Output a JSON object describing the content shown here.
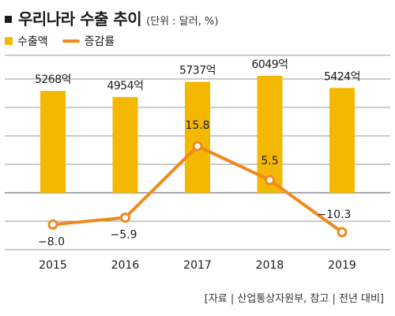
{
  "header": {
    "title": "우리나라 수출 추이",
    "unit_note": "(단위 : 달러, %)"
  },
  "legend": {
    "bar_label": "수출액",
    "line_label": "증감률"
  },
  "colors": {
    "bar": "#f5b800",
    "line": "#ee8a1e",
    "marker_fill": "#ffffff",
    "grid": "#777777"
  },
  "source": "[자료 | 산업통상자원부, 참고 | 전년 대비]",
  "chart_data": {
    "type": "bar",
    "categories": [
      "2015",
      "2016",
      "2017",
      "2018",
      "2019"
    ],
    "series": [
      {
        "name": "수출액",
        "type": "bar",
        "values": [
          5268,
          4954,
          5737,
          6049,
          5424
        ],
        "labels": [
          "5268억",
          "4954억",
          "5737억",
          "6049억",
          "5424억"
        ]
      },
      {
        "name": "증감률",
        "type": "line",
        "values": [
          -8.0,
          -5.9,
          15.8,
          5.5,
          -10.3
        ],
        "labels": [
          "−8.0",
          "−5.9",
          "15.8",
          "5.5",
          "−10.3"
        ]
      }
    ],
    "legend_position": "top-left",
    "grid": true
  }
}
